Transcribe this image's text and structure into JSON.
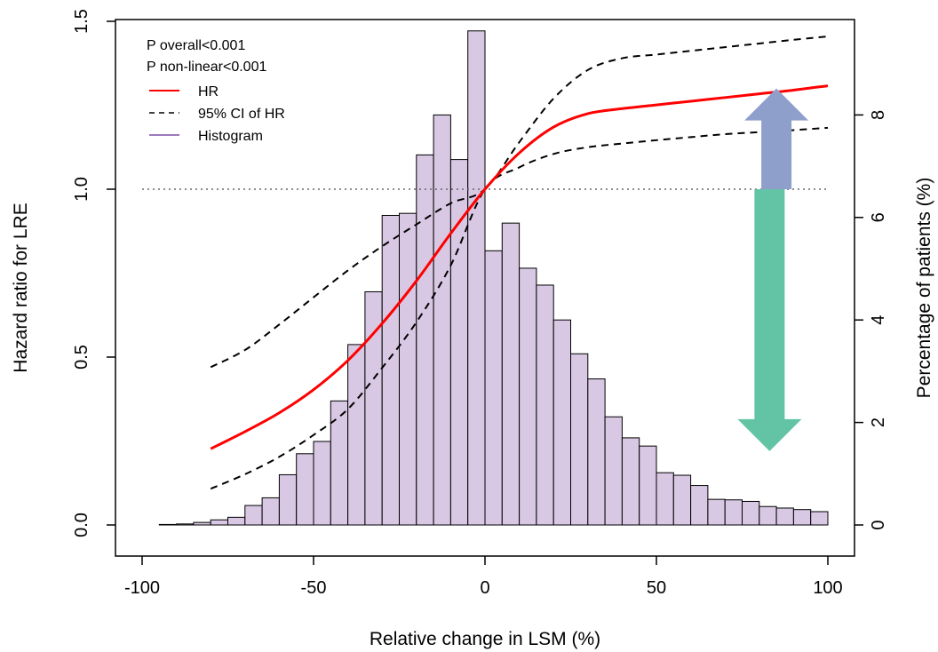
{
  "chart_data": {
    "type": "bar",
    "title": "",
    "xlabel": "Relative change in LSM (%)",
    "ylabel_left": "Hazard ratio for LRE",
    "ylabel_right": "Percentage of patients (%)",
    "xlim": [
      -100,
      100
    ],
    "ylim_left": [
      0,
      1.5
    ],
    "ylim_right": [
      0,
      10
    ],
    "x_ticks": [
      -100,
      -50,
      0,
      50,
      100
    ],
    "y_left_ticks": [
      "0.0",
      "0.5",
      "1.0",
      "1.5"
    ],
    "y_right_ticks": [
      "0",
      "2",
      "4",
      "6",
      "8"
    ],
    "annotations": [
      "P overall<0.001",
      "P non-linear<0.001"
    ],
    "legend": [
      {
        "label": "HR",
        "style": "solid",
        "color": "#ff0000"
      },
      {
        "label": "95% CI of HR",
        "style": "dashed",
        "color": "#000000"
      },
      {
        "label": "Histogram",
        "style": "solid",
        "color": "#7b4fa8"
      }
    ],
    "reference_line": {
      "y": 1.0,
      "style": "dotted",
      "color": "#666666"
    },
    "histogram": {
      "bin_width": 5,
      "bin_starts": [
        -95,
        -90,
        -85,
        -80,
        -75,
        -70,
        -65,
        -60,
        -55,
        -50,
        -45,
        -40,
        -35,
        -30,
        -25,
        -20,
        -15,
        -10,
        -5,
        0,
        5,
        10,
        15,
        20,
        25,
        30,
        35,
        40,
        45,
        50,
        55,
        60,
        65,
        70,
        75,
        80,
        85,
        90,
        95
      ],
      "percent": [
        0.01,
        0.02,
        0.05,
        0.1,
        0.15,
        0.38,
        0.53,
        0.98,
        1.39,
        1.63,
        2.42,
        3.52,
        4.55,
        6.04,
        6.08,
        7.22,
        8.0,
        7.13,
        9.64,
        5.35,
        5.89,
        5.01,
        4.68,
        4.0,
        3.34,
        2.85,
        2.11,
        1.7,
        1.54,
        1.02,
        0.97,
        0.77,
        0.5,
        0.49,
        0.46,
        0.36,
        0.33,
        0.3,
        0.26
      ],
      "fill": "#d8c8e3",
      "stroke": "#000000"
    },
    "series": [
      {
        "name": "HR",
        "color": "#ff0000",
        "x": [
          -80,
          -70,
          -60,
          -50,
          -40,
          -30,
          -20,
          -10,
          0,
          10,
          20,
          30,
          40,
          50,
          60,
          70,
          80,
          90,
          100
        ],
        "y": [
          0.227,
          0.278,
          0.334,
          0.403,
          0.49,
          0.6,
          0.727,
          0.868,
          1.0,
          1.108,
          1.185,
          1.225,
          1.24,
          1.251,
          1.262,
          1.273,
          1.284,
          1.295,
          1.308
        ]
      },
      {
        "name": "95% CI of HR",
        "color": "#000000",
        "style": "dashed",
        "x": [
          -80,
          -70,
          -60,
          -50,
          -40,
          -30,
          -20,
          -10,
          0,
          10,
          20,
          30,
          40,
          50,
          60,
          70,
          80,
          90,
          100
        ],
        "y": [
          0.47,
          0.521,
          0.597,
          0.678,
          0.758,
          0.83,
          0.895,
          0.958,
          1.0,
          1.14,
          1.27,
          1.355,
          1.39,
          1.401,
          1.412,
          1.423,
          1.434,
          1.445,
          1.455
        ]
      },
      {
        "name": "95% CI of HR lower",
        "color": "#000000",
        "style": "dashed",
        "x": [
          -80,
          -70,
          -60,
          -50,
          -40,
          -30,
          -20,
          -10,
          0,
          10,
          20,
          30,
          40,
          50,
          60,
          70,
          80,
          90,
          100
        ],
        "y": [
          0.108,
          0.151,
          0.203,
          0.268,
          0.345,
          0.468,
          0.604,
          0.773,
          1.0,
          1.065,
          1.105,
          1.125,
          1.136,
          1.146,
          1.155,
          1.164,
          1.17,
          1.176,
          1.183
        ]
      }
    ],
    "arrows": [
      {
        "name": "up-arrow",
        "direction": "up",
        "color": "#8f9fcb",
        "x": 85,
        "y_from": 1.0,
        "y_to": 1.3
      },
      {
        "name": "down-arrow",
        "direction": "down",
        "color": "#63c4a5",
        "x": 83,
        "y_from": 1.0,
        "y_to": 0.22
      }
    ]
  }
}
